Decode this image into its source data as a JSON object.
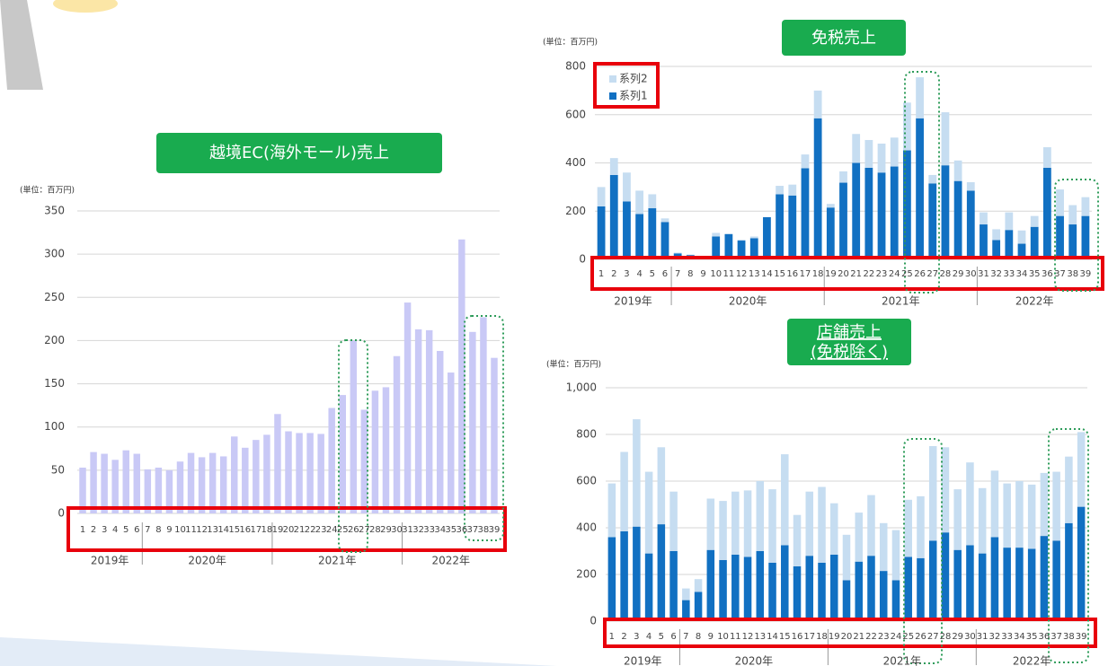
{
  "chart_data": [
    {
      "type": "bar",
      "title": "越境EC(海外モール)売上",
      "y_unit": "(単位：百万円)",
      "categories": [
        1,
        2,
        3,
        4,
        5,
        6,
        7,
        8,
        9,
        10,
        11,
        12,
        13,
        14,
        15,
        16,
        17,
        18,
        19,
        20,
        21,
        22,
        23,
        24,
        25,
        26,
        27,
        28,
        29,
        30,
        31,
        32,
        33,
        34,
        35,
        36,
        37,
        38,
        39
      ],
      "values": [
        53,
        71,
        69,
        62,
        73,
        69,
        51,
        53,
        50,
        60,
        70,
        65,
        70,
        66,
        89,
        76,
        85,
        91,
        115,
        95,
        93,
        93,
        92,
        122,
        137,
        200,
        120,
        142,
        146,
        182,
        244,
        213,
        212,
        188,
        163,
        317,
        210,
        227,
        180
      ],
      "color": "#c9c9f6",
      "ylim": [
        0,
        350
      ],
      "yticks": [
        0,
        50,
        100,
        150,
        200,
        250,
        300,
        350
      ],
      "grid": true,
      "groups": [
        {
          "label": "2019年",
          "count": 6
        },
        {
          "label": "2020年",
          "count": 12
        },
        {
          "label": "2021年",
          "count": 12
        },
        {
          "label": "2022年",
          "count": 9
        }
      ]
    },
    {
      "type": "stacked_bar",
      "title": "免税売上",
      "y_unit": "(単位：百万円)",
      "categories": [
        1,
        2,
        3,
        4,
        5,
        6,
        7,
        8,
        9,
        10,
        11,
        12,
        13,
        14,
        15,
        16,
        17,
        18,
        19,
        20,
        21,
        22,
        23,
        24,
        25,
        26,
        27,
        28,
        29,
        30,
        31,
        32,
        33,
        34,
        35,
        36,
        37,
        38,
        39
      ],
      "series": [
        {
          "name": "系列1",
          "color": "#1170c2",
          "values": [
            220,
            350,
            240,
            188,
            212,
            155,
            25,
            18,
            10,
            95,
            105,
            78,
            88,
            175,
            270,
            265,
            378,
            585,
            215,
            318,
            400,
            380,
            360,
            385,
            452,
            585,
            315,
            390,
            325,
            285,
            145,
            80,
            122,
            65,
            135,
            380,
            180,
            145,
            180
          ]
        },
        {
          "name": "系列2",
          "color": "#c6ddf1",
          "values": [
            80,
            70,
            120,
            97,
            58,
            15,
            3,
            2,
            2,
            15,
            0,
            4,
            7,
            0,
            35,
            45,
            57,
            115,
            15,
            47,
            120,
            115,
            120,
            120,
            198,
            170,
            35,
            220,
            85,
            35,
            50,
            45,
            73,
            55,
            45,
            85,
            110,
            80,
            78
          ]
        }
      ],
      "ylim": [
        0,
        800
      ],
      "yticks": [
        0,
        200,
        400,
        600,
        800
      ],
      "grid": true,
      "legend": "upper left",
      "groups": [
        {
          "label": "2019年",
          "count": 6
        },
        {
          "label": "2020年",
          "count": 12
        },
        {
          "label": "2021年",
          "count": 12
        },
        {
          "label": "2022年",
          "count": 9
        }
      ]
    },
    {
      "type": "stacked_bar",
      "title": "店舗売上",
      "subtitle": "(免税除く)",
      "y_unit": "(単位：百万円)",
      "categories": [
        1,
        2,
        3,
        4,
        5,
        6,
        7,
        8,
        9,
        10,
        11,
        12,
        13,
        14,
        15,
        16,
        17,
        18,
        19,
        20,
        21,
        22,
        23,
        24,
        25,
        26,
        27,
        28,
        29,
        30,
        31,
        32,
        33,
        34,
        35,
        36,
        37,
        38,
        39
      ],
      "series": [
        {
          "color": "#1170c2",
          "values": [
            360,
            385,
            405,
            290,
            415,
            300,
            90,
            125,
            305,
            262,
            285,
            275,
            300,
            250,
            325,
            235,
            280,
            250,
            285,
            175,
            255,
            280,
            215,
            175,
            275,
            270,
            345,
            380,
            305,
            325,
            290,
            360,
            315,
            315,
            310,
            365,
            345,
            420,
            490
          ]
        },
        {
          "color": "#c6ddf1",
          "values": [
            230,
            340,
            460,
            350,
            330,
            255,
            50,
            55,
            220,
            253,
            270,
            285,
            300,
            315,
            390,
            220,
            275,
            325,
            220,
            195,
            210,
            260,
            205,
            215,
            245,
            265,
            405,
            365,
            260,
            355,
            280,
            285,
            275,
            285,
            275,
            270,
            295,
            285,
            320
          ]
        }
      ],
      "ylim": [
        0,
        1000
      ],
      "yticks": [
        0,
        200,
        400,
        600,
        800,
        {
          "value": 1000,
          "label": "1,000"
        }
      ],
      "grid": true,
      "groups": [
        {
          "label": "2019年",
          "count": 6
        },
        {
          "label": "2020年",
          "count": 12
        },
        {
          "label": "2021年",
          "count": 12
        },
        {
          "label": "2022年",
          "count": 9
        }
      ]
    }
  ]
}
